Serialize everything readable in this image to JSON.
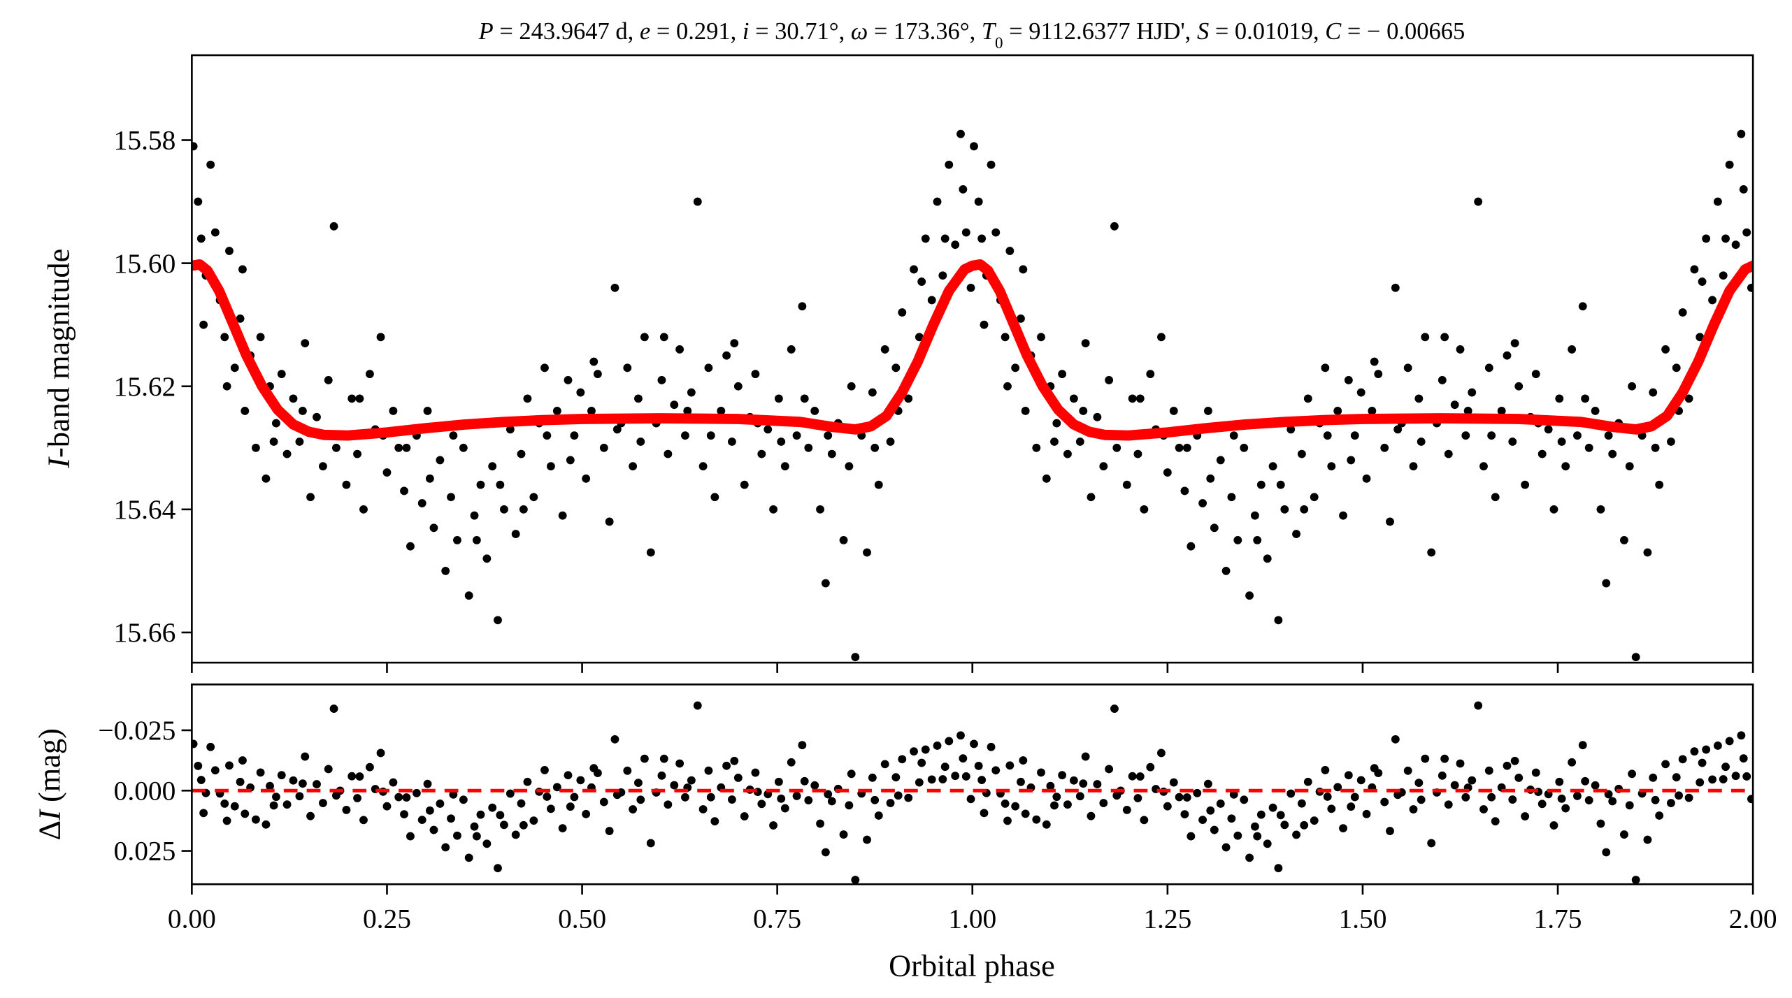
{
  "chart_data": {
    "type": "scatter",
    "title_segments": [
      {
        "t": "P",
        "i": true
      },
      {
        "t": " = 243.9647 d, "
      },
      {
        "t": "e",
        "i": true
      },
      {
        "t": " = 0.291, "
      },
      {
        "t": "i",
        "i": true
      },
      {
        "t": " = 30.71°, "
      },
      {
        "t": "ω",
        "i": true
      },
      {
        "t": " = 173.36°, "
      },
      {
        "t": "T",
        "i": true
      },
      {
        "t": "0",
        "sub": true
      },
      {
        "t": " = 9112.6377 HJD', "
      },
      {
        "t": "S",
        "i": true
      },
      {
        "t": " = 0.01019, "
      },
      {
        "t": "C",
        "i": true
      },
      {
        "t": " = − 0.00665"
      }
    ],
    "title": "P = 243.9647 d, e = 0.291, i = 30.71°, ω = 173.36°, T0 = 9112.6377 HJD', S = 0.01019, C = − 0.00665",
    "xlabel": "Orbital phase",
    "top_panel": {
      "ylabel_italic": "I",
      "ylabel_rest": "-band magnitude",
      "ylim": [
        15.5662,
        15.6649
      ],
      "inverted": true,
      "yticks": [
        15.58,
        15.6,
        15.62,
        15.64,
        15.66
      ],
      "ytick_labels": [
        "15.58",
        "15.60",
        "15.62",
        "15.64",
        "15.66"
      ]
    },
    "bottom_panel": {
      "ylabel_prefix": "Δ",
      "ylabel_italic": "I",
      "ylabel_rest": " (mag)",
      "ylim": [
        -0.044,
        0.0388
      ],
      "inverted": true,
      "yticks": [
        -0.025,
        0.0,
        0.025
      ],
      "ytick_labels": [
        "−0.025",
        "0.000",
        "0.025"
      ]
    },
    "xlim": [
      0,
      2
    ],
    "xticks": [
      0,
      0.25,
      0.5,
      0.75,
      1.0,
      1.25,
      1.5,
      1.75,
      2.0
    ],
    "xtick_labels": [
      "0.00",
      "0.25",
      "0.50",
      "0.75",
      "1.00",
      "1.25",
      "1.50",
      "1.75",
      "2.00"
    ],
    "phase_folded_repeat": 2,
    "colors": {
      "points": "#000000",
      "model": "#ff0000",
      "zero_line": "#ff0000"
    },
    "model": [
      [
        0.0,
        15.6004
      ],
      [
        0.01,
        15.6002
      ],
      [
        0.02,
        15.6012
      ],
      [
        0.035,
        15.6045
      ],
      [
        0.05,
        15.609
      ],
      [
        0.07,
        15.615
      ],
      [
        0.09,
        15.62
      ],
      [
        0.11,
        15.6238
      ],
      [
        0.13,
        15.6262
      ],
      [
        0.15,
        15.6274
      ],
      [
        0.17,
        15.6279
      ],
      [
        0.2,
        15.628
      ],
      [
        0.25,
        15.6275
      ],
      [
        0.3,
        15.6268
      ],
      [
        0.35,
        15.6262
      ],
      [
        0.4,
        15.6258
      ],
      [
        0.45,
        15.6255
      ],
      [
        0.5,
        15.6253
      ],
      [
        0.6,
        15.6252
      ],
      [
        0.7,
        15.6253
      ],
      [
        0.78,
        15.6258
      ],
      [
        0.82,
        15.6266
      ],
      [
        0.85,
        15.627
      ],
      [
        0.87,
        15.6265
      ],
      [
        0.89,
        15.6248
      ],
      [
        0.91,
        15.621
      ],
      [
        0.93,
        15.616
      ],
      [
        0.95,
        15.61
      ],
      [
        0.97,
        15.6045
      ],
      [
        0.99,
        15.601
      ],
      [
        1.0,
        15.6004
      ]
    ],
    "points": [
      [
        0.002,
        15.581
      ],
      [
        0.008,
        15.59
      ],
      [
        0.012,
        15.596
      ],
      [
        0.018,
        15.602
      ],
      [
        0.024,
        15.584
      ],
      [
        0.03,
        15.595
      ],
      [
        0.036,
        15.606
      ],
      [
        0.042,
        15.612
      ],
      [
        0.048,
        15.598
      ],
      [
        0.055,
        15.617
      ],
      [
        0.062,
        15.609
      ],
      [
        0.068,
        15.624
      ],
      [
        0.075,
        15.615
      ],
      [
        0.082,
        15.63
      ],
      [
        0.088,
        15.612
      ],
      [
        0.095,
        15.635
      ],
      [
        0.1,
        15.62
      ],
      [
        0.108,
        15.626
      ],
      [
        0.115,
        15.618
      ],
      [
        0.122,
        15.631
      ],
      [
        0.13,
        15.622
      ],
      [
        0.138,
        15.629
      ],
      [
        0.145,
        15.613
      ],
      [
        0.152,
        15.638
      ],
      [
        0.16,
        15.625
      ],
      [
        0.168,
        15.633
      ],
      [
        0.175,
        15.619
      ],
      [
        0.182,
        15.594
      ],
      [
        0.19,
        15.628
      ],
      [
        0.198,
        15.636
      ],
      [
        0.205,
        15.622
      ],
      [
        0.212,
        15.631
      ],
      [
        0.22,
        15.64
      ],
      [
        0.228,
        15.618
      ],
      [
        0.235,
        15.627
      ],
      [
        0.242,
        15.612
      ],
      [
        0.25,
        15.634
      ],
      [
        0.258,
        15.624
      ],
      [
        0.265,
        15.63
      ],
      [
        0.272,
        15.637
      ],
      [
        0.28,
        15.646
      ],
      [
        0.288,
        15.628
      ],
      [
        0.295,
        15.639
      ],
      [
        0.302,
        15.624
      ],
      [
        0.31,
        15.643
      ],
      [
        0.318,
        15.632
      ],
      [
        0.325,
        15.65
      ],
      [
        0.332,
        15.638
      ],
      [
        0.34,
        15.645
      ],
      [
        0.348,
        15.63
      ],
      [
        0.355,
        15.654
      ],
      [
        0.362,
        15.641
      ],
      [
        0.37,
        15.636
      ],
      [
        0.378,
        15.648
      ],
      [
        0.385,
        15.633
      ],
      [
        0.392,
        15.658
      ],
      [
        0.4,
        15.64
      ],
      [
        0.408,
        15.627
      ],
      [
        0.415,
        15.644
      ],
      [
        0.422,
        15.631
      ],
      [
        0.43,
        15.622
      ],
      [
        0.438,
        15.638
      ],
      [
        0.445,
        15.626
      ],
      [
        0.452,
        15.617
      ],
      [
        0.46,
        15.633
      ],
      [
        0.468,
        15.624
      ],
      [
        0.475,
        15.641
      ],
      [
        0.482,
        15.619
      ],
      [
        0.49,
        15.628
      ],
      [
        0.498,
        15.621
      ],
      [
        0.505,
        15.635
      ],
      [
        0.512,
        15.624
      ],
      [
        0.52,
        15.618
      ],
      [
        0.528,
        15.63
      ],
      [
        0.535,
        15.642
      ],
      [
        0.542,
        15.604
      ],
      [
        0.55,
        15.626
      ],
      [
        0.558,
        15.617
      ],
      [
        0.565,
        15.633
      ],
      [
        0.572,
        15.622
      ],
      [
        0.58,
        15.612
      ],
      [
        0.588,
        15.647
      ],
      [
        0.595,
        15.626
      ],
      [
        0.602,
        15.619
      ],
      [
        0.61,
        15.631
      ],
      [
        0.618,
        15.623
      ],
      [
        0.625,
        15.614
      ],
      [
        0.632,
        15.628
      ],
      [
        0.64,
        15.621
      ],
      [
        0.648,
        15.59
      ],
      [
        0.655,
        15.633
      ],
      [
        0.662,
        15.617
      ],
      [
        0.67,
        15.638
      ],
      [
        0.678,
        15.624
      ],
      [
        0.685,
        15.615
      ],
      [
        0.692,
        15.629
      ],
      [
        0.7,
        15.62
      ],
      [
        0.708,
        15.636
      ],
      [
        0.715,
        15.625
      ],
      [
        0.722,
        15.618
      ],
      [
        0.73,
        15.631
      ],
      [
        0.738,
        15.627
      ],
      [
        0.745,
        15.64
      ],
      [
        0.752,
        15.622
      ],
      [
        0.76,
        15.633
      ],
      [
        0.768,
        15.614
      ],
      [
        0.775,
        15.628
      ],
      [
        0.782,
        15.607
      ],
      [
        0.79,
        15.63
      ],
      [
        0.798,
        15.624
      ],
      [
        0.805,
        15.64
      ],
      [
        0.812,
        15.652
      ],
      [
        0.82,
        15.631
      ],
      [
        0.828,
        15.626
      ],
      [
        0.835,
        15.645
      ],
      [
        0.842,
        15.633
      ],
      [
        0.85,
        15.664
      ],
      [
        0.858,
        15.628
      ],
      [
        0.865,
        15.647
      ],
      [
        0.872,
        15.621
      ],
      [
        0.88,
        15.636
      ],
      [
        0.888,
        15.614
      ],
      [
        0.895,
        15.629
      ],
      [
        0.902,
        15.617
      ],
      [
        0.91,
        15.608
      ],
      [
        0.918,
        15.622
      ],
      [
        0.925,
        15.601
      ],
      [
        0.932,
        15.612
      ],
      [
        0.94,
        15.596
      ],
      [
        0.948,
        15.606
      ],
      [
        0.955,
        15.59
      ],
      [
        0.962,
        15.602
      ],
      [
        0.97,
        15.584
      ],
      [
        0.978,
        15.597
      ],
      [
        0.985,
        15.579
      ],
      [
        0.992,
        15.595
      ],
      [
        0.998,
        15.604
      ],
      [
        0.015,
        15.61
      ],
      [
        0.045,
        15.62
      ],
      [
        0.065,
        15.601
      ],
      [
        0.105,
        15.629
      ],
      [
        0.142,
        15.624
      ],
      [
        0.185,
        15.63
      ],
      [
        0.215,
        15.622
      ],
      [
        0.245,
        15.628
      ],
      [
        0.275,
        15.63
      ],
      [
        0.305,
        15.635
      ],
      [
        0.335,
        15.628
      ],
      [
        0.365,
        15.645
      ],
      [
        0.395,
        15.636
      ],
      [
        0.425,
        15.64
      ],
      [
        0.455,
        15.628
      ],
      [
        0.485,
        15.632
      ],
      [
        0.515,
        15.616
      ],
      [
        0.545,
        15.627
      ],
      [
        0.575,
        15.629
      ],
      [
        0.605,
        15.612
      ],
      [
        0.635,
        15.624
      ],
      [
        0.665,
        15.628
      ],
      [
        0.695,
        15.613
      ],
      [
        0.725,
        15.626
      ],
      [
        0.755,
        15.629
      ],
      [
        0.785,
        15.622
      ],
      [
        0.815,
        15.628
      ],
      [
        0.845,
        15.62
      ],
      [
        0.875,
        15.63
      ],
      [
        0.905,
        15.624
      ],
      [
        0.935,
        15.603
      ],
      [
        0.965,
        15.596
      ],
      [
        0.988,
        15.588
      ]
    ]
  }
}
